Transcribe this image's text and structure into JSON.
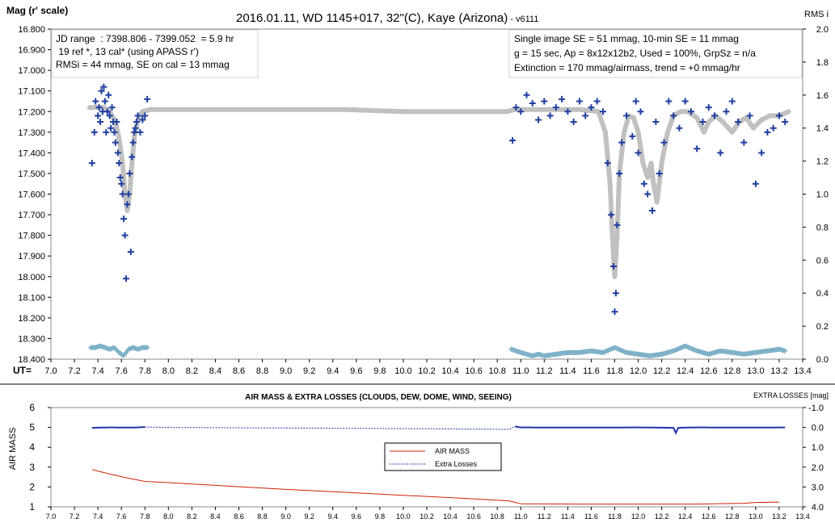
{
  "top": {
    "title_main": "2016.01.11, WD 1145+017, 32\"(C), Kaye (Arizona)",
    "title_suffix": " - v6111",
    "ylabel_left": "Mag (r' scale)",
    "ylabel_right": "RMS i",
    "xlabel_prefix": "UT=",
    "info_left": [
      "JD range  : 7398.806 - 7399.052  = 5.9 hr",
      " 19 ref *, 13 cal* (using APASS r')",
      "RMSi = 44 mmag, SE on cal = 13 mmag"
    ],
    "info_right": [
      "Single image SE = 51 mmag, 10-min SE = 11 mmag",
      "g = 15 sec, Ap = 8x12x12b2, Used = 100%, GrpSz = n/a",
      "Extinction = 170 mmag/airmass, trend = +0 mmag/hr"
    ],
    "y_ticks": [
      "16.800",
      "16.900",
      "17.000",
      "17.100",
      "17.200",
      "17.300",
      "17.400",
      "17.500",
      "17.600",
      "17.700",
      "17.800",
      "17.900",
      "18.000",
      "18.100",
      "18.200",
      "18.300",
      "18.400"
    ],
    "y2_ticks": [
      "2.0",
      "1.8",
      "1.6",
      "1.4",
      "1.2",
      "1.0",
      "0.8",
      "0.6",
      "0.4",
      "0.2",
      "0.0"
    ],
    "x_ticks": [
      "7.0",
      "7.2",
      "7.4",
      "7.6",
      "7.8",
      "8.0",
      "8.2",
      "8.4",
      "8.6",
      "8.8",
      "9.0",
      "9.2",
      "9.4",
      "9.6",
      "9.8",
      "10.0",
      "10.2",
      "10.4",
      "10.6",
      "10.8",
      "11.0",
      "11.2",
      "11.4",
      "11.6",
      "11.8",
      "12.0",
      "12.2",
      "12.4",
      "12.6",
      "12.8",
      "13.0",
      "13.2",
      "13.4"
    ]
  },
  "bottom": {
    "title": "AIR MASS & EXTRA LOSSES (CLOUDS, DEW, DOME, WIND, SEEING)",
    "ylabel_left": "AIR MASS",
    "ylabel_right": "EXTRA LOSSES [mag]",
    "y_ticks": [
      "6",
      "5",
      "4",
      "3",
      "2",
      "1"
    ],
    "y2_ticks": [
      "-1.0",
      "0.0",
      "1.0",
      "2.0",
      "3.0",
      "4.0"
    ],
    "x_ticks": [
      "7.0",
      "7.2",
      "7.4",
      "7.6",
      "7.8",
      "8.0",
      "8.2",
      "8.4",
      "8.6",
      "8.8",
      "9.0",
      "9.2",
      "9.4",
      "9.6",
      "9.8",
      "10.0",
      "10.2",
      "10.4",
      "10.6",
      "10.8",
      "11.0",
      "11.2",
      "11.4",
      "11.6",
      "11.8",
      "12.0",
      "12.2",
      "12.4",
      "12.6",
      "12.8",
      "13.0",
      "13.2",
      "13.4"
    ],
    "legend": [
      "AIR MASS",
      "Extra Losses"
    ]
  },
  "colors": {
    "data": "#1f3f9f",
    "model": "#c0c0c0",
    "rms": "#7fb2c8",
    "airmass": "#cc2200",
    "losses": "#2233aa"
  },
  "chart_data": [
    {
      "type": "scatter",
      "title": "2016.01.11, WD 1145+017, 32\"(C), Kaye (Arizona) - v6111",
      "xlabel": "UT=",
      "ylabel": "Mag (r' scale)",
      "y2label": "RMS i",
      "xlim": [
        7.0,
        13.4
      ],
      "ylim": [
        18.4,
        16.8
      ],
      "y2lim": [
        0.0,
        2.0
      ],
      "grid": false,
      "series": [
        {
          "name": "model",
          "style": "thick-line",
          "x": [
            7.33,
            7.45,
            7.5,
            7.55,
            7.58,
            7.61,
            7.63,
            7.65,
            7.67,
            7.69,
            7.71,
            7.74,
            7.78,
            7.85,
            7.9,
            8.5,
            9.5,
            10.0,
            10.88,
            10.95,
            11.5,
            11.66,
            11.72,
            11.76,
            11.78,
            11.8,
            11.82,
            11.84,
            11.88,
            11.92,
            11.96,
            12.0,
            12.04,
            12.08,
            12.11,
            12.13,
            12.16,
            12.2,
            12.25,
            12.3,
            12.36,
            12.42,
            12.5,
            12.56,
            12.6,
            12.66,
            12.72,
            12.8,
            12.86,
            12.92,
            12.98,
            13.05,
            13.12,
            13.2,
            13.28
          ],
          "y": [
            17.18,
            17.18,
            17.2,
            17.25,
            17.33,
            17.45,
            17.6,
            17.68,
            17.6,
            17.45,
            17.32,
            17.24,
            17.2,
            17.19,
            17.19,
            17.19,
            17.19,
            17.2,
            17.2,
            17.19,
            17.19,
            17.2,
            17.3,
            17.55,
            17.8,
            18.0,
            17.8,
            17.5,
            17.3,
            17.22,
            17.23,
            17.3,
            17.45,
            17.52,
            17.45,
            17.55,
            17.64,
            17.45,
            17.3,
            17.22,
            17.2,
            17.2,
            17.23,
            17.3,
            17.25,
            17.22,
            17.25,
            17.3,
            17.25,
            17.23,
            17.28,
            17.24,
            17.22,
            17.22,
            17.2
          ]
        },
        {
          "name": "observed",
          "style": "plus-markers",
          "x": [
            7.35,
            7.37,
            7.38,
            7.4,
            7.41,
            7.42,
            7.43,
            7.44,
            7.45,
            7.46,
            7.47,
            7.48,
            7.49,
            7.5,
            7.51,
            7.52,
            7.53,
            7.54,
            7.55,
            7.56,
            7.57,
            7.58,
            7.59,
            7.6,
            7.61,
            7.62,
            7.63,
            7.64,
            7.65,
            7.66,
            7.67,
            7.68,
            7.69,
            7.7,
            7.71,
            7.72,
            7.73,
            7.74,
            7.76,
            7.78,
            7.8,
            7.82,
            10.93,
            10.96,
            11.0,
            11.05,
            11.1,
            11.15,
            11.2,
            11.25,
            11.3,
            11.35,
            11.4,
            11.45,
            11.5,
            11.55,
            11.6,
            11.65,
            11.7,
            11.74,
            11.77,
            11.79,
            11.8,
            11.81,
            11.82,
            11.84,
            11.86,
            11.9,
            11.95,
            11.98,
            12.0,
            12.02,
            12.05,
            12.08,
            12.12,
            12.15,
            12.18,
            12.22,
            12.26,
            12.3,
            12.35,
            12.4,
            12.45,
            12.5,
            12.55,
            12.6,
            12.65,
            12.7,
            12.75,
            12.8,
            12.85,
            12.9,
            12.95,
            13.0,
            13.05,
            13.1,
            13.15,
            13.2,
            13.25
          ],
          "y": [
            17.45,
            17.3,
            17.15,
            17.22,
            17.18,
            17.25,
            17.1,
            17.2,
            17.08,
            17.15,
            17.3,
            17.2,
            17.12,
            17.22,
            17.28,
            17.18,
            17.25,
            17.3,
            17.35,
            17.25,
            17.4,
            17.45,
            17.52,
            17.55,
            17.6,
            17.72,
            17.8,
            18.01,
            17.65,
            17.6,
            17.5,
            17.88,
            17.42,
            17.35,
            17.3,
            17.28,
            17.25,
            17.22,
            17.3,
            17.24,
            17.22,
            17.14,
            17.34,
            17.18,
            17.2,
            17.12,
            17.16,
            17.24,
            17.15,
            17.22,
            17.18,
            17.14,
            17.2,
            17.25,
            17.15,
            17.22,
            17.18,
            17.15,
            17.2,
            17.45,
            17.7,
            17.95,
            18.17,
            18.08,
            17.75,
            17.5,
            17.35,
            17.22,
            17.32,
            17.15,
            17.4,
            17.2,
            17.55,
            17.6,
            17.68,
            17.25,
            17.5,
            17.35,
            17.15,
            17.22,
            17.28,
            17.15,
            17.2,
            17.38,
            17.25,
            17.18,
            17.22,
            17.4,
            17.2,
            17.15,
            17.25,
            17.35,
            17.22,
            17.55,
            17.4,
            17.3,
            17.28,
            17.22,
            17.25
          ]
        },
        {
          "name": "rms",
          "axis": "right",
          "style": "plus-markers",
          "x": [
            7.34,
            7.38,
            7.42,
            7.46,
            7.5,
            7.54,
            7.58,
            7.62,
            7.66,
            7.7,
            7.74,
            7.78,
            7.82,
            10.92,
            10.96,
            11.0,
            11.05,
            11.1,
            11.15,
            11.2,
            11.3,
            11.4,
            11.5,
            11.6,
            11.7,
            11.8,
            11.9,
            12.0,
            12.1,
            12.2,
            12.3,
            12.4,
            12.5,
            12.6,
            12.7,
            12.8,
            12.9,
            13.0,
            13.1,
            13.2,
            13.25
          ],
          "y": [
            0.07,
            0.07,
            0.08,
            0.07,
            0.06,
            0.07,
            0.04,
            0.02,
            0.06,
            0.07,
            0.06,
            0.07,
            0.07,
            0.06,
            0.05,
            0.04,
            0.03,
            0.02,
            0.03,
            0.02,
            0.03,
            0.04,
            0.04,
            0.05,
            0.04,
            0.07,
            0.04,
            0.03,
            0.02,
            0.03,
            0.05,
            0.08,
            0.05,
            0.03,
            0.05,
            0.04,
            0.03,
            0.04,
            0.05,
            0.06,
            0.05
          ]
        }
      ]
    },
    {
      "type": "line",
      "title": "AIR MASS & EXTRA LOSSES (CLOUDS, DEW, DOME, WIND, SEEING)",
      "ylabel": "AIR MASS",
      "y2label": "EXTRA LOSSES [mag]",
      "xlim": [
        7.0,
        13.4
      ],
      "ylim": [
        1,
        6
      ],
      "y2lim": [
        -1.0,
        4.0
      ],
      "legend": "center",
      "series": [
        {
          "name": "AIR MASS",
          "x": [
            7.35,
            7.5,
            7.65,
            7.8,
            8.0,
            8.5,
            9.0,
            9.5,
            10.0,
            10.5,
            10.9,
            11.0,
            11.5,
            12.0,
            12.5,
            12.9,
            13.0,
            13.2
          ],
          "y": [
            2.88,
            2.65,
            2.45,
            2.28,
            2.22,
            2.05,
            1.88,
            1.73,
            1.58,
            1.43,
            1.3,
            1.15,
            1.14,
            1.14,
            1.14,
            1.18,
            1.22,
            1.24
          ]
        },
        {
          "name": "Extra Losses",
          "axis": "right",
          "x": [
            7.35,
            7.5,
            7.7,
            7.8,
            8.0,
            9.0,
            10.0,
            10.9,
            10.95,
            11.0,
            11.5,
            12.0,
            12.3,
            12.32,
            12.34,
            12.5,
            13.0,
            13.25
          ],
          "y": [
            0.02,
            0.0,
            0.01,
            -0.02,
            0.0,
            0.03,
            0.06,
            0.1,
            -0.05,
            0.0,
            0.01,
            0.0,
            0.02,
            0.28,
            0.02,
            0.0,
            0.01,
            0.0
          ]
        }
      ]
    }
  ]
}
